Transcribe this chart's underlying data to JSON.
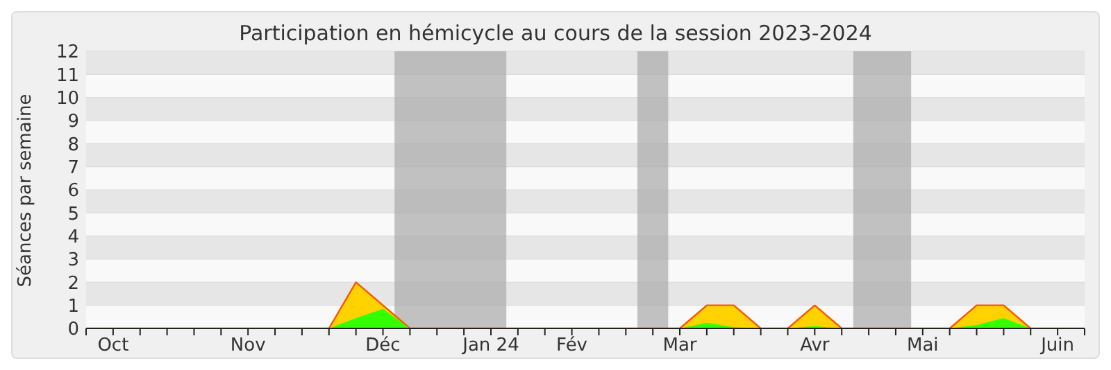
{
  "chart_data": {
    "type": "area",
    "title": "Participation en hémicycle au cours de la session 2023-2024",
    "ylabel": "Séances par semaine",
    "x": [
      "2023-09-29",
      "2023-10-06",
      "2023-10-13",
      "2023-10-20",
      "2023-10-27",
      "2023-11-03",
      "2023-11-10",
      "2023-11-17",
      "2023-11-24",
      "2023-12-01",
      "2023-12-08",
      "2023-12-15",
      "2023-12-22",
      "2023-12-29",
      "2024-01-05",
      "2024-01-12",
      "2024-01-19",
      "2024-01-26",
      "2024-02-02",
      "2024-02-09",
      "2024-02-16",
      "2024-02-23",
      "2024-03-01",
      "2024-03-08",
      "2024-03-15",
      "2024-03-22",
      "2024-03-29",
      "2024-04-05",
      "2024-04-12",
      "2024-04-19",
      "2024-04-26",
      "2024-05-03",
      "2024-05-10",
      "2024-05-17",
      "2024-05-24",
      "2024-05-31",
      "2024-06-07",
      "2024-06-14"
    ],
    "series": [
      {
        "color": "#ffd200",
        "values": [
          0,
          0,
          0,
          0,
          0,
          0,
          0,
          0,
          0,
          0,
          2,
          1,
          0,
          0,
          0,
          0,
          0,
          0,
          0,
          0,
          0,
          0,
          0,
          1,
          1,
          0,
          0,
          1,
          0,
          0,
          0,
          0,
          0,
          1,
          1,
          0,
          0,
          0
        ]
      },
      {
        "color": "#33ff00",
        "values": [
          0,
          0,
          0,
          0,
          0,
          0,
          0,
          0,
          0,
          0,
          0.45,
          0.85,
          0,
          0,
          0,
          0,
          0,
          0,
          0,
          0,
          0,
          0,
          0,
          0.25,
          0.05,
          0,
          0,
          0.1,
          0,
          0,
          0,
          0,
          0,
          0.15,
          0.45,
          0,
          0,
          0
        ]
      }
    ],
    "xlim": [
      "2023-09-29",
      "2024-06-14"
    ],
    "xticks": [
      {
        "value": "2023-09-29",
        "label": null
      },
      {
        "value": "2023-10-06",
        "label": "Oct"
      },
      {
        "value": "2023-10-13",
        "label": null
      },
      {
        "value": "2023-10-20",
        "label": null
      },
      {
        "value": "2023-10-27",
        "label": null
      },
      {
        "value": "2023-11-03",
        "label": null
      },
      {
        "value": "2023-11-10",
        "label": "Nov"
      },
      {
        "value": "2023-11-17",
        "label": null
      },
      {
        "value": "2023-11-24",
        "label": null
      },
      {
        "value": "2023-12-01",
        "label": null
      },
      {
        "value": "2023-12-08",
        "label": null
      },
      {
        "value": "2023-12-15",
        "label": "Déc"
      },
      {
        "value": "2023-12-22",
        "label": null
      },
      {
        "value": "2023-12-29",
        "label": null
      },
      {
        "value": "2024-01-05",
        "label": null
      },
      {
        "value": "2024-01-12",
        "label": "Jan 24"
      },
      {
        "value": "2024-01-19",
        "label": null
      },
      {
        "value": "2024-01-26",
        "label": null
      },
      {
        "value": "2024-02-02",
        "label": "Fév"
      },
      {
        "value": "2024-02-09",
        "label": null
      },
      {
        "value": "2024-02-16",
        "label": null
      },
      {
        "value": "2024-02-23",
        "label": null
      },
      {
        "value": "2024-03-01",
        "label": "Mar"
      },
      {
        "value": "2024-03-08",
        "label": null
      },
      {
        "value": "2024-03-15",
        "label": null
      },
      {
        "value": "2024-03-22",
        "label": null
      },
      {
        "value": "2024-03-29",
        "label": null
      },
      {
        "value": "2024-04-05",
        "label": "Avr"
      },
      {
        "value": "2024-04-12",
        "label": null
      },
      {
        "value": "2024-04-19",
        "label": null
      },
      {
        "value": "2024-04-26",
        "label": null
      },
      {
        "value": "2024-05-03",
        "label": "Mai"
      },
      {
        "value": "2024-05-10",
        "label": null
      },
      {
        "value": "2024-05-17",
        "label": null
      },
      {
        "value": "2024-05-24",
        "label": null
      },
      {
        "value": "2024-05-31",
        "label": null
      },
      {
        "value": "2024-06-07",
        "label": "Juin"
      },
      {
        "value": "2024-06-14",
        "label": null
      }
    ],
    "ylim": [
      0,
      12
    ],
    "yticks": [
      0,
      1,
      2,
      3,
      4,
      5,
      6,
      7,
      8,
      9,
      10,
      11,
      12
    ],
    "grid": "y",
    "bands": [
      {
        "axis": "x",
        "from": "2023-12-18",
        "to": "2024-01-16",
        "color": "#aaaaaa"
      },
      {
        "axis": "x",
        "from": "2024-02-19",
        "to": "2024-02-27",
        "color": "#aaaaaa"
      },
      {
        "axis": "x",
        "from": "2024-04-15",
        "to": "2024-04-30",
        "color": "#aaaaaa"
      }
    ]
  }
}
